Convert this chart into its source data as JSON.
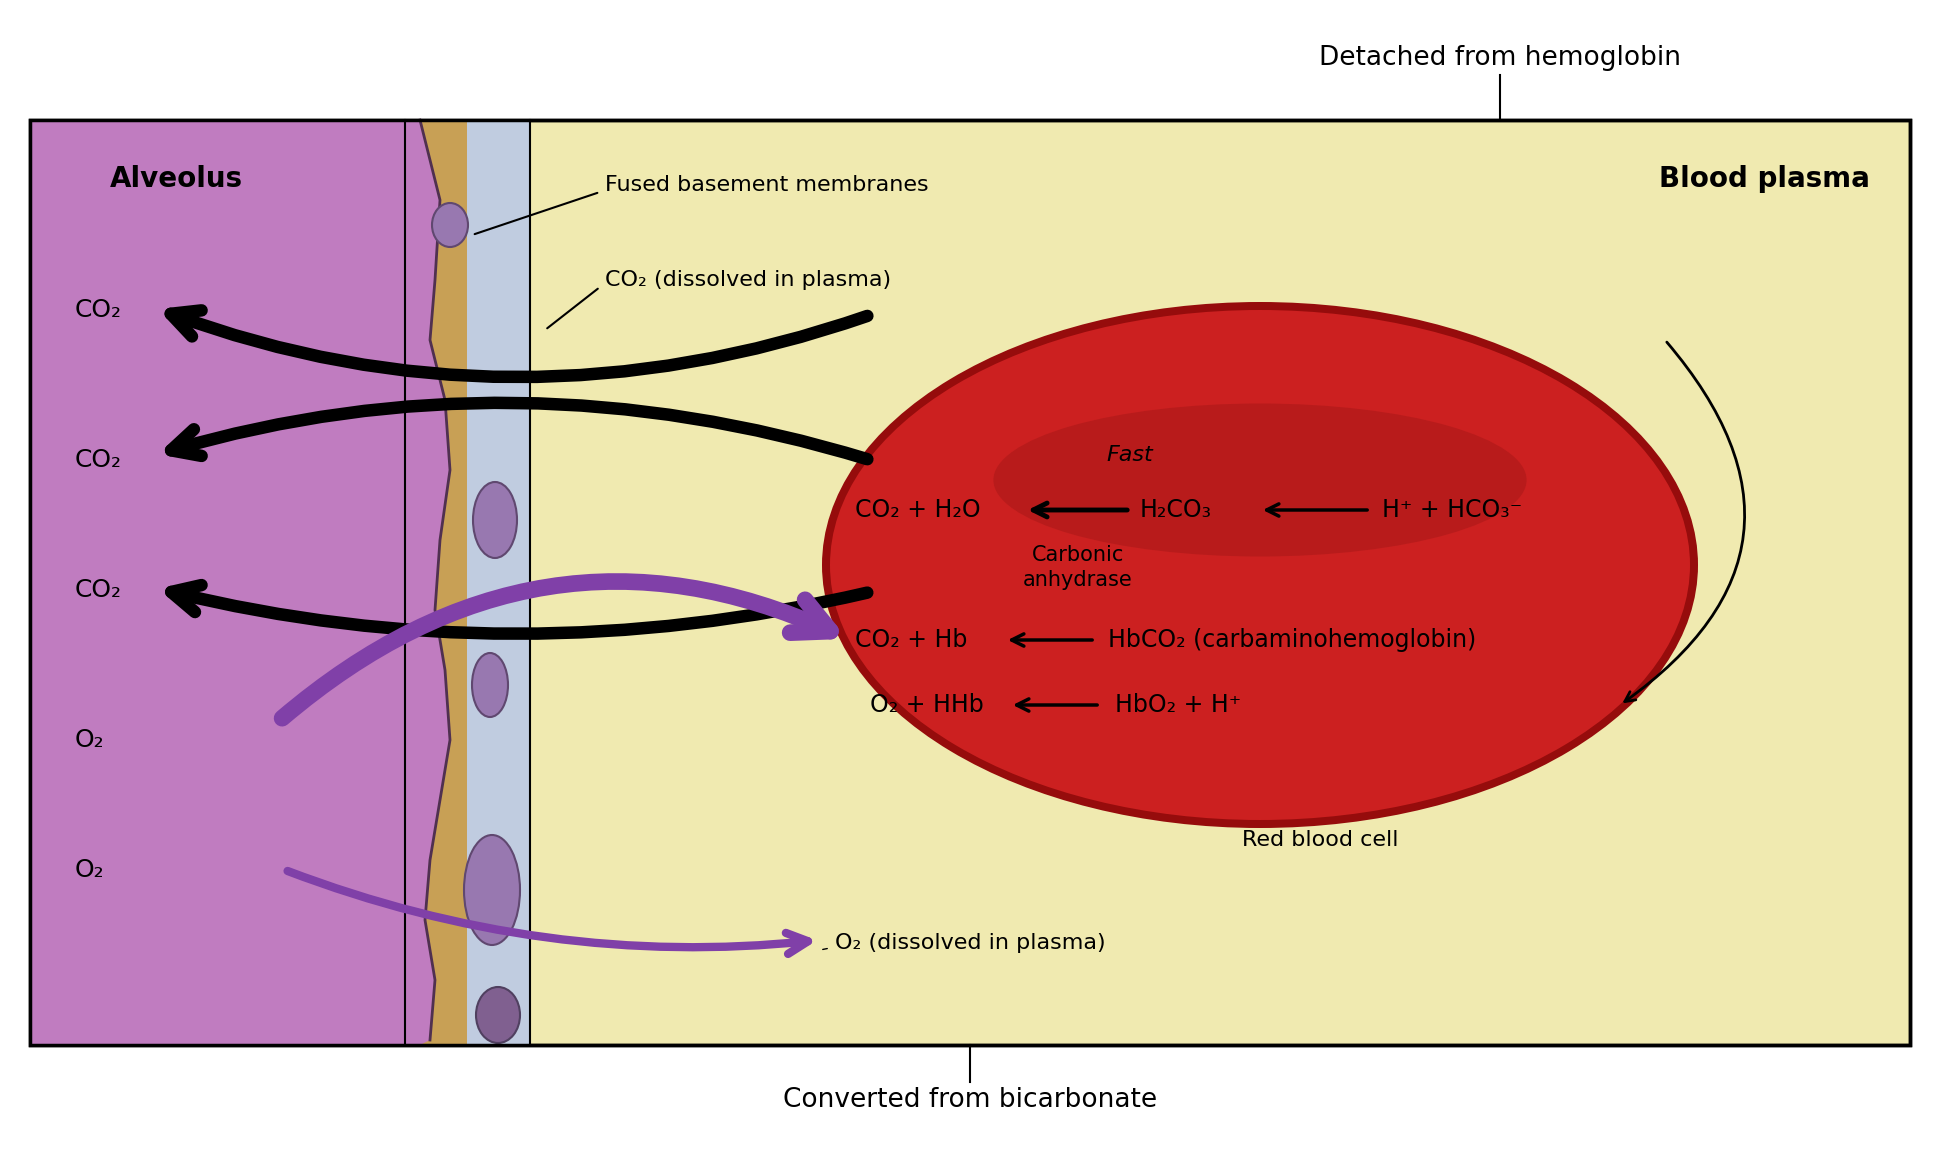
{
  "fig_width": 19.4,
  "fig_height": 11.5,
  "dpi": 100,
  "bg": "#FFFFFF",
  "plasma_bg": "#F0EAB0",
  "alv_bg": "#C07CC0",
  "mem_tan": "#C8A055",
  "mem_blue": "#C0CCE0",
  "cell_fill": "#9878B0",
  "cell_edge": "#604870",
  "rbc_edge": "#960C0C",
  "rbc_dark": "#BB1010",
  "rbc_mid": "#CC2020",
  "rbc_hi": "#B82222",
  "black": "#000000",
  "purple": "#8040A8",
  "title_above": "Detached from hemoglobin",
  "title_below": "Converted from bicarbonate",
  "lbl_alveolus": "Alveolus",
  "lbl_plasma": "Blood plasma",
  "lbl_fused": "Fused basement membranes",
  "lbl_co2_plasma": "CO₂ (dissolved in plasma)",
  "lbl_o2_plasma": "O₂ (dissolved in plasma)",
  "lbl_rbc": "Red blood cell",
  "lbl_fast": "Fast",
  "lbl_carbonic": "Carbonic\nanhydrase",
  "rxn1_a": "CO₂ + H₂O",
  "rxn1_b": "H₂CO₃",
  "rxn1_c": "H⁺ + HCO₃⁻",
  "rxn2_a": "CO₂ + Hb",
  "rxn2_b": "HbCO₂ (carbaminohemoglobin)",
  "rxn3_a": "O₂ + HHb",
  "rxn3_b": "HbO₂ + H⁺"
}
